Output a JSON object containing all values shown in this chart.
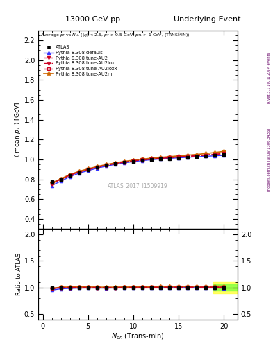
{
  "title_left": "13000 GeV pp",
  "title_right": "Underlying Event",
  "watermark": "ATLAS_2017_I1509919",
  "right_label_top": "Rivet 3.1.10, ≥ 2.6M events",
  "right_label_bottom": "mcplots.cern.ch [arXiv:1306.3436]",
  "xlabel": "$N_{ch}$ (Trans-min)",
  "ylabel_main": "$\\langle$ mean $p_T$ $\\rangle$ [GeV]",
  "ylabel_ratio": "Ratio to ATLAS",
  "ylim_main": [
    0.3,
    2.3
  ],
  "ylim_ratio": [
    0.4,
    2.1
  ],
  "yticks_main": [
    0.4,
    0.6,
    0.8,
    1.0,
    1.2,
    1.4,
    1.6,
    1.8,
    2.0,
    2.2
  ],
  "yticks_ratio": [
    0.5,
    1.0,
    1.5,
    2.0
  ],
  "xlim": [
    -0.5,
    21.5
  ],
  "xticks": [
    0,
    5,
    10,
    15,
    20
  ],
  "data_x": [
    1,
    2,
    3,
    4,
    5,
    6,
    7,
    8,
    9,
    10,
    11,
    12,
    13,
    14,
    15,
    16,
    17,
    18,
    19,
    20
  ],
  "atlas_y": [
    0.775,
    0.8,
    0.84,
    0.87,
    0.895,
    0.92,
    0.942,
    0.958,
    0.97,
    0.982,
    0.99,
    0.998,
    1.004,
    1.01,
    1.016,
    1.022,
    1.028,
    1.035,
    1.042,
    1.052
  ],
  "atlas_err": [
    0.018,
    0.012,
    0.01,
    0.009,
    0.008,
    0.008,
    0.007,
    0.007,
    0.006,
    0.006,
    0.006,
    0.006,
    0.006,
    0.006,
    0.007,
    0.007,
    0.008,
    0.009,
    0.01,
    0.012
  ],
  "default_y": [
    0.738,
    0.782,
    0.827,
    0.862,
    0.888,
    0.912,
    0.933,
    0.951,
    0.966,
    0.979,
    0.989,
    0.998,
    1.005,
    1.011,
    1.017,
    1.022,
    1.027,
    1.032,
    1.037,
    1.042
  ],
  "au2_y": [
    0.762,
    0.803,
    0.845,
    0.877,
    0.901,
    0.924,
    0.944,
    0.961,
    0.975,
    0.987,
    0.997,
    1.006,
    1.013,
    1.019,
    1.026,
    1.032,
    1.038,
    1.044,
    1.052,
    1.06
  ],
  "au2lox_y": [
    0.758,
    0.799,
    0.842,
    0.874,
    0.899,
    0.922,
    0.943,
    0.96,
    0.974,
    0.986,
    0.996,
    1.005,
    1.012,
    1.019,
    1.025,
    1.031,
    1.038,
    1.044,
    1.051,
    1.059
  ],
  "au2loxx_y": [
    0.76,
    0.801,
    0.843,
    0.875,
    0.9,
    0.923,
    0.943,
    0.96,
    0.974,
    0.986,
    0.997,
    1.005,
    1.012,
    1.019,
    1.026,
    1.032,
    1.038,
    1.045,
    1.052,
    1.06
  ],
  "au2m_y": [
    0.765,
    0.806,
    0.849,
    0.881,
    0.906,
    0.929,
    0.949,
    0.966,
    0.981,
    0.993,
    1.004,
    1.013,
    1.021,
    1.029,
    1.036,
    1.043,
    1.051,
    1.06,
    1.07,
    1.082
  ],
  "color_default": "#3333ff",
  "color_au2": "#cc0022",
  "color_au2lox": "#cc0022",
  "color_au2loxx": "#cc0022",
  "color_au2m": "#cc6600",
  "atlas_marker_color": "#000000",
  "atlas_marker": "s",
  "band_color_green": "#88ff44",
  "band_color_yellow": "#ffff44"
}
